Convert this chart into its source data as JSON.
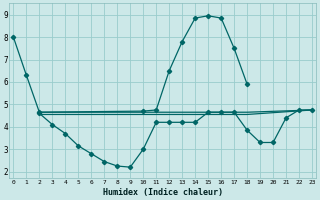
{
  "xlabel": "Humidex (Indice chaleur)",
  "bg_color": "#cce8e8",
  "grid_color": "#99cccc",
  "line_color": "#006666",
  "series1_x": [
    0,
    1,
    2,
    10,
    11,
    12,
    13,
    14,
    15,
    16,
    17,
    18
  ],
  "series1_y": [
    8.0,
    6.3,
    4.65,
    4.7,
    4.75,
    6.5,
    7.8,
    8.85,
    8.95,
    8.85,
    7.5,
    5.9
  ],
  "series2_x": [
    2,
    3,
    4,
    5,
    6,
    7,
    8,
    9,
    10,
    11,
    12,
    13,
    14,
    15,
    16,
    17,
    18,
    19,
    20,
    21,
    22,
    23
  ],
  "series2_y": [
    4.6,
    4.1,
    3.7,
    3.15,
    2.8,
    2.45,
    2.25,
    2.2,
    3.0,
    4.2,
    4.2,
    4.2,
    4.2,
    4.65,
    4.65,
    4.65,
    3.85,
    3.3,
    3.3,
    4.4,
    4.75,
    4.75
  ],
  "series3_x": [
    2,
    18,
    23
  ],
  "series3_y": [
    4.65,
    4.65,
    4.75
  ],
  "series4_x": [
    2,
    18,
    23
  ],
  "series4_y": [
    4.55,
    4.55,
    4.75
  ],
  "xlim": [
    -0.3,
    23.3
  ],
  "ylim": [
    1.7,
    9.5
  ],
  "yticks": [
    2,
    3,
    4,
    5,
    6,
    7,
    8,
    9
  ],
  "xticks": [
    0,
    1,
    2,
    3,
    4,
    5,
    6,
    7,
    8,
    9,
    10,
    11,
    12,
    13,
    14,
    15,
    16,
    17,
    18,
    19,
    20,
    21,
    22,
    23
  ]
}
